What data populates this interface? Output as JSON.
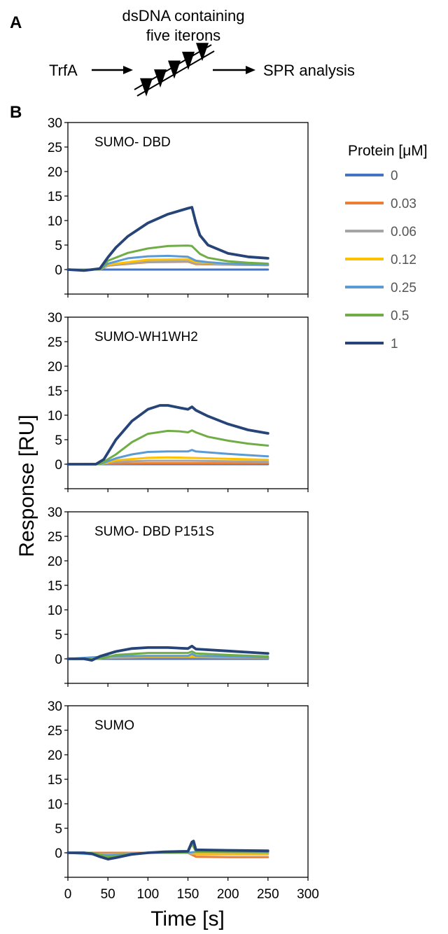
{
  "figure": {
    "panel_a_letter": "A",
    "panel_b_letter": "B"
  },
  "diagram": {
    "dna_label_line1": "dsDNA containing",
    "dna_label_line2": "five iterons",
    "left_label": "TrfA",
    "right_label": "SPR analysis",
    "iteron_count": 5
  },
  "chart_data": {
    "type": "line",
    "xlabel": "Time [s]",
    "ylabel": "Response [RU]",
    "xlim": [
      0,
      300
    ],
    "ylim": [
      -5,
      30
    ],
    "x_ticks": [
      "0",
      "50",
      "100",
      "150",
      "200",
      "250",
      "300"
    ],
    "y_ticks": [
      "30",
      "25",
      "20",
      "15",
      "10",
      "5",
      "0"
    ],
    "grid": false,
    "legend": {
      "title": "Protein [μM]",
      "placement": "right",
      "entries": [
        {
          "label": "0",
          "color": "#4472c4"
        },
        {
          "label": "0.03",
          "color": "#ed7d31"
        },
        {
          "label": "0.06",
          "color": "#a5a5a5"
        },
        {
          "label": "0.12",
          "color": "#ffc000"
        },
        {
          "label": "0.25",
          "color": "#5b9bd5"
        },
        {
          "label": "0.5",
          "color": "#70ad47"
        },
        {
          "label": "1",
          "color": "#264478"
        }
      ]
    },
    "panels": [
      {
        "title": "SUMO- DBD",
        "series": [
          {
            "color": "#4472c4",
            "x": [
              0,
              50,
              100,
              150,
              250
            ],
            "y": [
              0,
              0,
              0,
              0,
              0
            ]
          },
          {
            "color": "#ed7d31",
            "x": [
              0,
              40,
              50,
              100,
              150,
              160,
              200,
              250
            ],
            "y": [
              0,
              0,
              0.8,
              1.5,
              1.6,
              1.1,
              1.0,
              0.9
            ]
          },
          {
            "color": "#a5a5a5",
            "x": [
              0,
              40,
              50,
              100,
              150,
              160,
              200,
              250
            ],
            "y": [
              0,
              0,
              0.8,
              1.6,
              1.7,
              1.2,
              1.0,
              0.9
            ]
          },
          {
            "color": "#ffc000",
            "x": [
              0,
              40,
              50,
              100,
              150,
              160,
              200,
              250
            ],
            "y": [
              0,
              0,
              1.0,
              2.0,
              2.1,
              1.5,
              1.2,
              1.0
            ]
          },
          {
            "color": "#5b9bd5",
            "x": [
              0,
              40,
              50,
              75,
              100,
              125,
              150,
              160,
              175,
              200,
              250
            ],
            "y": [
              0,
              0,
              1.2,
              2.3,
              2.7,
              2.8,
              2.6,
              1.8,
              1.5,
              1.2,
              1.0
            ]
          },
          {
            "color": "#70ad47",
            "x": [
              0,
              40,
              50,
              75,
              100,
              125,
              150,
              155,
              165,
              175,
              200,
              225,
              250
            ],
            "y": [
              0,
              0,
              1.8,
              3.4,
              4.3,
              4.8,
              4.9,
              4.8,
              3.2,
              2.4,
              1.7,
              1.4,
              1.2
            ]
          },
          {
            "color": "#264478",
            "x": [
              0,
              20,
              40,
              50,
              60,
              75,
              100,
              125,
              150,
              155,
              160,
              165,
              175,
              200,
              225,
              250
            ],
            "y": [
              0,
              -0.2,
              0.2,
              2.5,
              4.5,
              6.8,
              9.5,
              11.3,
              12.5,
              12.7,
              9.5,
              7.0,
              5.0,
              3.3,
              2.6,
              2.3
            ]
          }
        ]
      },
      {
        "title": "SUMO-WH1WH2",
        "series": [
          {
            "color": "#4472c4",
            "x": [
              0,
              50,
              100,
              150,
              250
            ],
            "y": [
              0,
              0,
              0,
              0,
              0
            ]
          },
          {
            "color": "#ed7d31",
            "x": [
              0,
              50,
              100,
              150,
              250
            ],
            "y": [
              0,
              0.1,
              0.2,
              0.2,
              0.2
            ]
          },
          {
            "color": "#a5a5a5",
            "x": [
              0,
              40,
              60,
              100,
              150,
              200,
              250
            ],
            "y": [
              0,
              0,
              0.5,
              0.7,
              0.7,
              0.6,
              0.5
            ]
          },
          {
            "color": "#ffc000",
            "x": [
              0,
              40,
              60,
              100,
              125,
              150,
              200,
              250
            ],
            "y": [
              0,
              0,
              0.8,
              1.3,
              1.4,
              1.3,
              1.1,
              0.9
            ]
          },
          {
            "color": "#5b9bd5",
            "x": [
              0,
              40,
              60,
              80,
              100,
              125,
              150,
              155,
              160,
              200,
              250
            ],
            "y": [
              0,
              0,
              1.2,
              2.0,
              2.5,
              2.6,
              2.6,
              2.9,
              2.6,
              2.1,
              1.6
            ]
          },
          {
            "color": "#70ad47",
            "x": [
              0,
              40,
              60,
              80,
              100,
              125,
              140,
              150,
              155,
              160,
              175,
              200,
              225,
              250
            ],
            "y": [
              0,
              0,
              2.0,
              4.5,
              6.2,
              6.8,
              6.7,
              6.5,
              6.9,
              6.5,
              5.6,
              4.8,
              4.2,
              3.8
            ]
          },
          {
            "color": "#264478",
            "x": [
              0,
              20,
              35,
              45,
              60,
              80,
              100,
              115,
              125,
              140,
              150,
              155,
              160,
              175,
              200,
              225,
              250
            ],
            "y": [
              0,
              0,
              0,
              1.0,
              5.0,
              8.8,
              11.2,
              12.0,
              12.0,
              11.5,
              11.2,
              11.7,
              11.0,
              9.8,
              8.2,
              7.0,
              6.3
            ]
          }
        ]
      },
      {
        "title": "SUMO- DBD P151S",
        "series": [
          {
            "color": "#4472c4",
            "x": [
              0,
              50,
              100,
              150,
              250
            ],
            "y": [
              0,
              0,
              0,
              0,
              0
            ]
          },
          {
            "color": "#ed7d31",
            "x": [
              0,
              50,
              100,
              150,
              250
            ],
            "y": [
              0,
              0.2,
              0.3,
              0.3,
              0.2
            ]
          },
          {
            "color": "#a5a5a5",
            "x": [
              0,
              50,
              100,
              150,
              250
            ],
            "y": [
              0,
              0.2,
              0.3,
              0.3,
              0.2
            ]
          },
          {
            "color": "#ffc000",
            "x": [
              0,
              50,
              100,
              150,
              250
            ],
            "y": [
              0,
              0.4,
              0.5,
              0.5,
              0.3
            ]
          },
          {
            "color": "#5b9bd5",
            "x": [
              0,
              50,
              100,
              150,
              155,
              160,
              250
            ],
            "y": [
              0,
              0.5,
              0.6,
              0.6,
              1.0,
              0.6,
              0.3
            ]
          },
          {
            "color": "#70ad47",
            "x": [
              0,
              40,
              60,
              100,
              150,
              155,
              160,
              200,
              250
            ],
            "y": [
              0,
              0,
              0.8,
              1.2,
              1.2,
              1.5,
              1.1,
              0.8,
              0.5
            ]
          },
          {
            "color": "#264478",
            "x": [
              0,
              20,
              30,
              40,
              60,
              80,
              100,
              125,
              150,
              155,
              160,
              200,
              250
            ],
            "y": [
              0,
              0,
              -0.3,
              0.5,
              1.5,
              2.1,
              2.3,
              2.3,
              2.1,
              2.6,
              2.0,
              1.6,
              1.1
            ]
          }
        ]
      },
      {
        "title": "SUMO",
        "series": [
          {
            "color": "#4472c4",
            "x": [
              0,
              50,
              100,
              150,
              250
            ],
            "y": [
              0,
              0,
              0,
              0,
              0
            ]
          },
          {
            "color": "#ed7d31",
            "x": [
              0,
              50,
              100,
              150,
              160,
              200,
              250
            ],
            "y": [
              0,
              0,
              0,
              0,
              -0.8,
              -0.9,
              -0.9
            ]
          },
          {
            "color": "#a5a5a5",
            "x": [
              0,
              50,
              100,
              150,
              160,
              250
            ],
            "y": [
              0,
              -0.3,
              0,
              0,
              -0.3,
              -0.3
            ]
          },
          {
            "color": "#ffc000",
            "x": [
              0,
              50,
              100,
              150,
              160,
              250
            ],
            "y": [
              0,
              -0.4,
              0,
              0,
              -0.2,
              -0.2
            ]
          },
          {
            "color": "#5b9bd5",
            "x": [
              0,
              50,
              100,
              150,
              160,
              250
            ],
            "y": [
              0,
              -0.5,
              0,
              0,
              0.2,
              0.1
            ]
          },
          {
            "color": "#70ad47",
            "x": [
              0,
              30,
              50,
              80,
              100,
              150,
              155,
              160,
              200,
              250
            ],
            "y": [
              0,
              0,
              -0.8,
              -0.4,
              0,
              0.1,
              1.8,
              0.3,
              0.2,
              0.1
            ]
          },
          {
            "color": "#264478",
            "x": [
              0,
              20,
              30,
              40,
              50,
              60,
              80,
              100,
              120,
              150,
              155,
              157,
              160,
              200,
              250
            ],
            "y": [
              0,
              0,
              -0.2,
              -0.8,
              -1.3,
              -1.0,
              -0.3,
              0,
              0.2,
              0.3,
              2.2,
              2.4,
              0.6,
              0.5,
              0.4
            ]
          }
        ]
      }
    ]
  }
}
